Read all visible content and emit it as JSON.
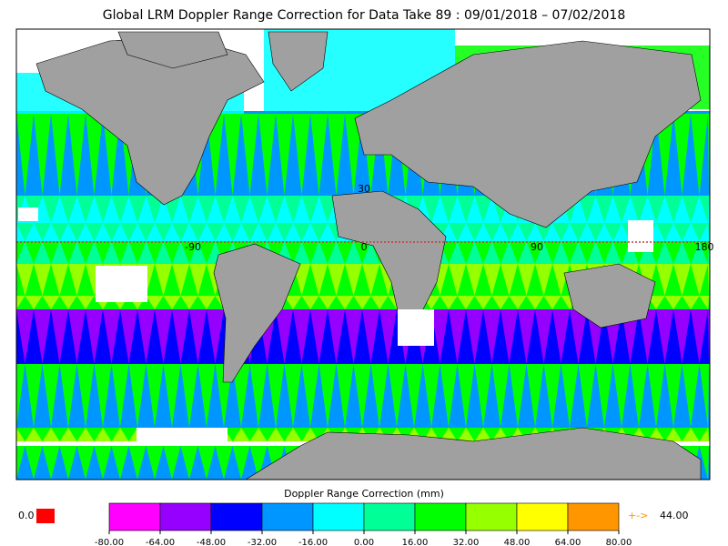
{
  "title": "Global LRM Doppler Range Correction for Data Take 89 : 09/01/2018 – 07/02/2018",
  "map_labels": [
    "30",
    "-90",
    "0",
    "90",
    "180"
  ],
  "colorbar": {
    "title": "Doppler Range Correction (mm)",
    "range": [
      -80,
      80
    ],
    "colors": [
      "#ff00ff",
      "#9600ff",
      "#0000ff",
      "#0096ff",
      "#00ffff",
      "#00ff96",
      "#00ff00",
      "#96ff00",
      "#ffff00",
      "#ff9600"
    ],
    "ticks": [
      {
        "value": -80,
        "label": "-80.00"
      },
      {
        "value": -64,
        "label": "-64.00"
      },
      {
        "value": -48,
        "label": "-48.00"
      },
      {
        "value": -32,
        "label": "-32.00"
      },
      {
        "value": -16,
        "label": "-16.00"
      },
      {
        "value": 0,
        "label": "0.00"
      },
      {
        "value": 16,
        "label": "16.00"
      },
      {
        "value": 32,
        "label": "32.00"
      },
      {
        "value": 48,
        "label": "48.00"
      },
      {
        "value": 64,
        "label": "64.00"
      },
      {
        "value": 80,
        "label": "80.00"
      }
    ]
  },
  "missing_label": "0.0",
  "overflow_arrow": "+->",
  "overflow_label": "44.00"
}
